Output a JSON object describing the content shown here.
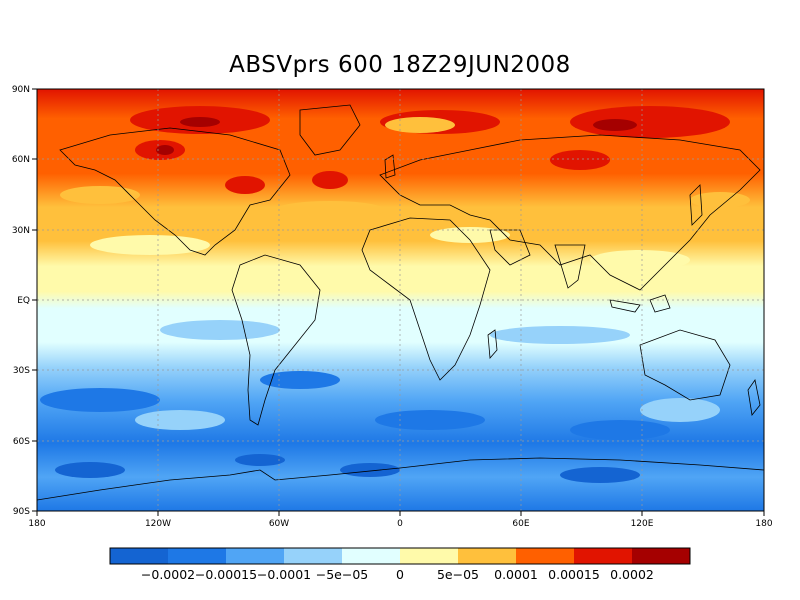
{
  "title": "ABSVprs 600 18Z29JUN2008",
  "map": {
    "lat_labels": [
      "90N",
      "60N",
      "30N",
      "EQ",
      "30S",
      "60S",
      "90S"
    ],
    "lon_labels": [
      "180",
      "120W",
      "60W",
      "0",
      "60E",
      "120E",
      "180"
    ],
    "gridlines": "dotted"
  },
  "colorbar": {
    "colors": [
      "#1464d2",
      "#1e78e6",
      "#50a5f5",
      "#96d2fa",
      "#e1ffff",
      "#fffaaa",
      "#ffc03c",
      "#ff6000",
      "#e11400",
      "#a50000"
    ],
    "labels": [
      "−0.0002",
      "−0.00015",
      "−0.0001",
      "−5e−05",
      "0",
      "5e−05",
      "0.0001",
      "0.00015",
      "0.0002"
    ]
  }
}
